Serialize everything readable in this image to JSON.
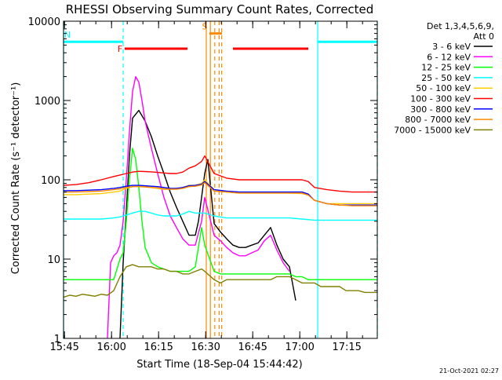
{
  "chart_data": {
    "type": "line",
    "title": "RHESSI Observing Summary Count Rates, Corrected",
    "xlabel": "Start Time (18-Sep-04 15:44:42)",
    "ylabel": "Corrected Count Rate (s⁻¹ detector⁻¹)",
    "y_scale": "log",
    "ylim": [
      1,
      10000
    ],
    "xlim_minutes": [
      0,
      100
    ],
    "x_ticks": [
      "15:45",
      "16:00",
      "16:15",
      "16:30",
      "16:45",
      "17:00",
      "17:15"
    ],
    "x_tick_minutes": [
      0.3,
      15.3,
      30.3,
      45.3,
      60.3,
      75.3,
      90.3
    ],
    "y_ticks": [
      "1",
      "10",
      "100",
      "1000",
      "10000"
    ],
    "legend_header": [
      "Det 1,3,4,5,6,9,",
      "Att 0"
    ],
    "footer_date": "21-Oct-2021 02:27",
    "series": [
      {
        "name": "3 - 6 keV",
        "color": "#000000",
        "x": [
          18,
          19,
          20,
          21,
          22,
          24,
          26,
          28,
          30,
          32,
          34,
          36,
          38,
          40,
          42,
          43,
          44,
          45,
          46,
          48,
          50,
          52,
          54,
          56,
          58,
          60,
          62,
          64,
          66,
          68,
          70,
          72,
          74
        ],
        "y": [
          1,
          9,
          40,
          200,
          600,
          750,
          550,
          350,
          200,
          120,
          70,
          45,
          30,
          20,
          20,
          30,
          60,
          120,
          180,
          28,
          22,
          18,
          15,
          14,
          14,
          15,
          16,
          20,
          25,
          15,
          10,
          8,
          3
        ]
      },
      {
        "name": "6 - 12 keV",
        "color": "#ff00ff",
        "x": [
          14,
          15,
          16,
          17,
          18,
          19,
          20,
          21,
          22,
          23,
          24,
          25,
          26,
          28,
          30,
          32,
          34,
          36,
          38,
          40,
          42,
          44,
          45,
          48,
          50,
          52,
          54,
          56,
          58,
          60,
          62,
          64,
          66,
          68,
          70,
          72
        ],
        "y": [
          1,
          9,
          11,
          12,
          15,
          30,
          100,
          400,
          1300,
          2000,
          1700,
          1000,
          550,
          250,
          120,
          60,
          35,
          25,
          18,
          15,
          15,
          30,
          60,
          20,
          17,
          14,
          12,
          11,
          11,
          12,
          13,
          17,
          20,
          13,
          9,
          7
        ]
      },
      {
        "name": "12 - 25 keV",
        "color": "#00ff00",
        "x": [
          0,
          2,
          4,
          6,
          8,
          10,
          12,
          14,
          16,
          18,
          19,
          20,
          21,
          22,
          23,
          24,
          25,
          26,
          28,
          30,
          32,
          34,
          36,
          38,
          40,
          42,
          44,
          45,
          48,
          50,
          52,
          54,
          56,
          58,
          60,
          62,
          64,
          66,
          68,
          70,
          72,
          74,
          76,
          78,
          80,
          82,
          84,
          86,
          88,
          90,
          92,
          94,
          96,
          98,
          100
        ],
        "y": [
          5.5,
          5.5,
          5.5,
          5.5,
          5.5,
          5.5,
          5.5,
          5.5,
          5.5,
          10,
          12,
          30,
          100,
          250,
          180,
          80,
          30,
          14,
          9,
          8,
          7.5,
          7,
          7,
          7,
          7,
          8,
          25,
          15,
          7,
          6.5,
          6.5,
          6.5,
          6.5,
          6.5,
          6.5,
          6.5,
          6.5,
          6.5,
          6.5,
          6.5,
          6.5,
          6,
          6,
          5.5,
          5.5,
          5.5,
          5.5,
          5.5,
          5.5,
          5.5,
          5.5,
          5.5,
          5.5,
          5.5,
          5.5
        ]
      },
      {
        "name": "25 - 50 keV",
        "color": "#00ffff",
        "x": [
          0,
          4,
          8,
          12,
          16,
          18,
          20,
          22,
          24,
          26,
          28,
          30,
          32,
          34,
          36,
          38,
          40,
          42,
          44,
          45,
          48,
          50,
          52,
          56,
          60,
          64,
          68,
          72,
          76,
          80,
          84,
          88,
          92,
          96,
          100
        ],
        "y": [
          32,
          32,
          32,
          32,
          33,
          34,
          36,
          38,
          40,
          40,
          38,
          36,
          35,
          35,
          35,
          37,
          40,
          38,
          38,
          38,
          35,
          34,
          33,
          33,
          33,
          33,
          33,
          33,
          32,
          31,
          31,
          31,
          31,
          31,
          31
        ]
      },
      {
        "name": "50 - 100 keV",
        "color": "#ffcc00",
        "x": [
          0,
          4,
          8,
          12,
          16,
          18,
          20,
          22,
          24,
          26,
          28,
          30,
          32,
          34,
          36,
          38,
          40,
          42,
          44,
          45,
          48,
          52,
          56,
          60,
          64,
          68,
          72,
          76,
          78,
          80,
          84,
          88,
          92,
          96,
          100
        ],
        "y": [
          65,
          65,
          66,
          67,
          70,
          72,
          78,
          82,
          83,
          82,
          80,
          78,
          76,
          76,
          78,
          80,
          85,
          85,
          90,
          100,
          75,
          70,
          68,
          68,
          68,
          68,
          68,
          67,
          65,
          55,
          50,
          50,
          50,
          50,
          50
        ]
      },
      {
        "name": "100 - 300 keV",
        "color": "#ff0000",
        "x": [
          0,
          4,
          8,
          12,
          16,
          18,
          20,
          22,
          24,
          26,
          28,
          30,
          32,
          34,
          36,
          38,
          40,
          42,
          44,
          45,
          48,
          52,
          56,
          60,
          64,
          68,
          72,
          76,
          78,
          80,
          84,
          88,
          92,
          96,
          100
        ],
        "y": [
          85,
          87,
          92,
          100,
          110,
          115,
          120,
          125,
          128,
          127,
          126,
          124,
          122,
          120,
          120,
          125,
          140,
          150,
          170,
          200,
          120,
          105,
          100,
          100,
          100,
          100,
          100,
          100,
          95,
          80,
          75,
          72,
          70,
          70,
          70
        ]
      },
      {
        "name": "300 - 800 keV",
        "color": "#0000ff",
        "x": [
          0,
          4,
          8,
          12,
          16,
          18,
          20,
          22,
          24,
          26,
          28,
          30,
          32,
          34,
          36,
          38,
          40,
          42,
          44,
          45,
          48,
          52,
          56,
          60,
          64,
          68,
          72,
          76,
          78,
          80,
          84,
          88,
          92,
          96,
          100
        ],
        "y": [
          73,
          73,
          74,
          75,
          78,
          80,
          83,
          85,
          85,
          84,
          83,
          82,
          80,
          78,
          78,
          80,
          84,
          85,
          88,
          95,
          75,
          72,
          70,
          70,
          70,
          70,
          70,
          70,
          66,
          55,
          50,
          48,
          48,
          48,
          48
        ]
      },
      {
        "name": "800 - 7000 keV",
        "color": "#ff8800",
        "x": [
          0,
          4,
          8,
          12,
          16,
          18,
          20,
          22,
          24,
          26,
          28,
          30,
          32,
          34,
          36,
          38,
          40,
          42,
          44,
          45,
          48,
          52,
          56,
          60,
          64,
          68,
          72,
          76,
          78,
          80,
          84,
          88,
          92,
          96,
          100
        ],
        "y": [
          70,
          70,
          71,
          72,
          75,
          77,
          80,
          82,
          82,
          81,
          80,
          79,
          77,
          76,
          76,
          78,
          82,
          83,
          86,
          92,
          72,
          70,
          68,
          68,
          68,
          68,
          68,
          68,
          64,
          55,
          50,
          48,
          47,
          47,
          47
        ]
      },
      {
        "name": "7000 - 15000 keV",
        "color": "#808000",
        "x": [
          0,
          2,
          4,
          6,
          8,
          10,
          12,
          14,
          16,
          18,
          20,
          22,
          24,
          26,
          28,
          30,
          32,
          34,
          36,
          38,
          40,
          42,
          44,
          45,
          48,
          50,
          52,
          54,
          56,
          58,
          60,
          62,
          64,
          66,
          68,
          70,
          72,
          74,
          76,
          78,
          80,
          82,
          84,
          86,
          88,
          90,
          92,
          94,
          96,
          98,
          100
        ],
        "y": [
          3.3,
          3.5,
          3.4,
          3.6,
          3.5,
          3.4,
          3.6,
          3.5,
          4,
          6,
          8,
          8.5,
          8,
          8,
          8,
          7.5,
          7.5,
          7,
          7,
          6.5,
          6.5,
          7,
          7.5,
          7,
          5.5,
          5,
          5.5,
          5.5,
          5.5,
          5.5,
          5.5,
          5.5,
          5.5,
          5.5,
          6,
          6,
          6,
          5.5,
          5,
          5,
          5,
          4.5,
          4.5,
          4.5,
          4.5,
          4,
          4,
          4,
          3.8,
          3.8,
          3.8
        ]
      }
    ],
    "annotations": [
      {
        "label": "N",
        "color": "#00ffff",
        "x_start": 0,
        "x_end": 19,
        "y": 5500
      },
      {
        "label": "",
        "color": "#00ffff",
        "x_start": 81,
        "x_end": 100,
        "y": 5500
      },
      {
        "label": "F",
        "color": "#ff0000",
        "x_start": 19.5,
        "x_end": 39.5,
        "y": 4500
      },
      {
        "label": "",
        "color": "#ff0000",
        "x_start": 54,
        "x_end": 78,
        "y": 4500
      },
      {
        "label": "S",
        "color": "#ff8800",
        "x_start": 46.5,
        "x_end": 50.5,
        "y": 7000
      }
    ],
    "vertical_markers": [
      {
        "x": 0,
        "color": "#00ffff",
        "style": "solid"
      },
      {
        "x": 19,
        "color": "#00ffff",
        "style": "dashed"
      },
      {
        "x": 81,
        "color": "#00ffff",
        "style": "solid"
      },
      {
        "x": 100,
        "color": "#00ffff",
        "style": "dashed"
      },
      {
        "x": 45.5,
        "color": "#ff8800",
        "style": "solid"
      },
      {
        "x": 46.8,
        "color": "#ff8800",
        "style": "solid"
      },
      {
        "x": 48.2,
        "color": "#ff8800",
        "style": "dashed"
      },
      {
        "x": 49.6,
        "color": "#ff8800",
        "style": "dashed"
      },
      {
        "x": 50.4,
        "color": "#ff8800",
        "style": "dashed"
      }
    ]
  }
}
